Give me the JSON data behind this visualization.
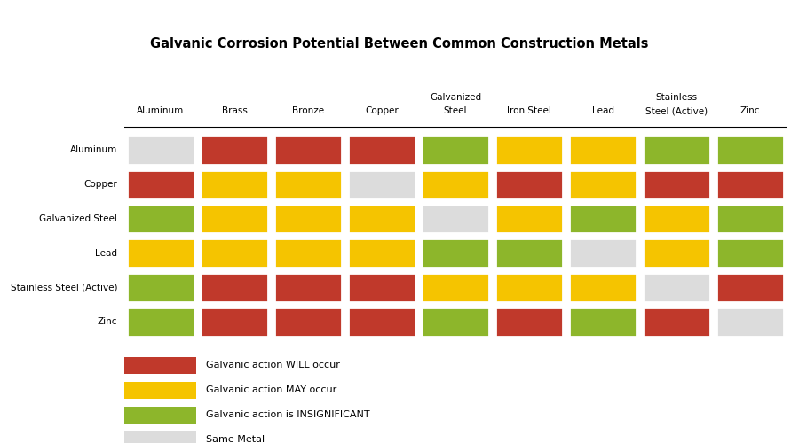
{
  "title": "Galvanic Corrosion Potential Between Common Construction Metals",
  "col_labels": [
    "Aluminum",
    "Brass",
    "Bronze",
    "Copper",
    "Galvanized\nSteel",
    "Iron Steel",
    "Lead",
    "Stainless\nSteel (Active)",
    "Zinc"
  ],
  "row_labels": [
    "Aluminum",
    "Copper",
    "Galvanized Steel",
    "Lead",
    "Stainless Steel (Active)",
    "Zinc"
  ],
  "colors": {
    "R": "#C0392B",
    "Y": "#F5C400",
    "G": "#8DB62B",
    "S": "#DCDCDC"
  },
  "grid": [
    [
      "S",
      "R",
      "R",
      "R",
      "G",
      "Y",
      "Y",
      "G",
      "G"
    ],
    [
      "R",
      "Y",
      "Y",
      "S",
      "Y",
      "R",
      "Y",
      "R",
      "R"
    ],
    [
      "G",
      "Y",
      "Y",
      "Y",
      "S",
      "Y",
      "G",
      "Y",
      "G"
    ],
    [
      "Y",
      "Y",
      "Y",
      "Y",
      "G",
      "G",
      "S",
      "Y",
      "G"
    ],
    [
      "G",
      "R",
      "R",
      "R",
      "Y",
      "Y",
      "Y",
      "S",
      "R"
    ],
    [
      "G",
      "R",
      "R",
      "R",
      "G",
      "R",
      "G",
      "R",
      "S"
    ]
  ],
  "legend": [
    {
      "color": "#C0392B",
      "label": "Galvanic action WILL occur"
    },
    {
      "color": "#F5C400",
      "label": "Galvanic action MAY occur"
    },
    {
      "color": "#8DB62B",
      "label": "Galvanic action is INSIGNIFICANT"
    },
    {
      "color": "#DCDCDC",
      "label": "Same Metal"
    }
  ],
  "figsize": [
    9.0,
    5.0
  ],
  "dpi": 100
}
